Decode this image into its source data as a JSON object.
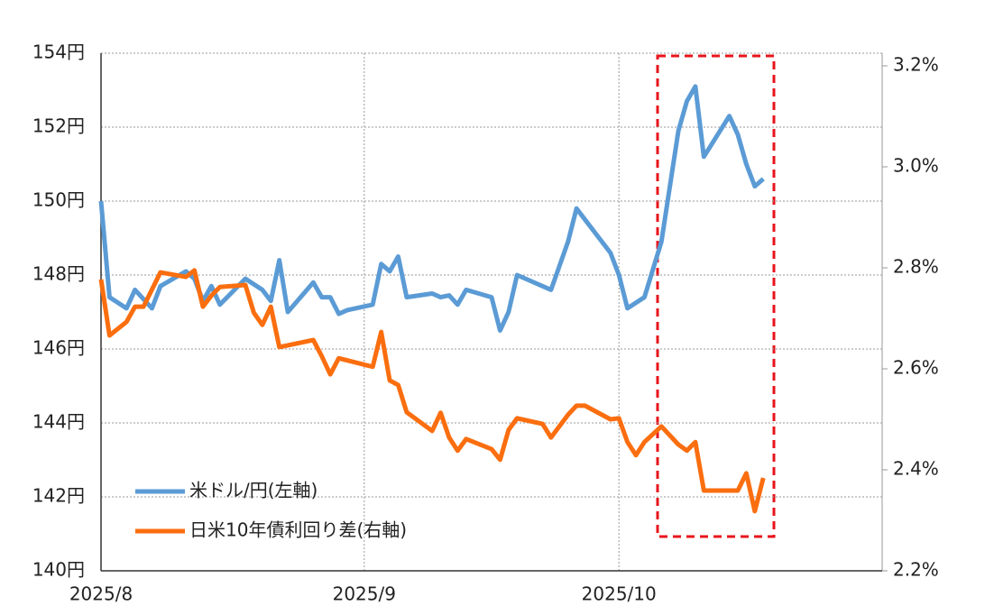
{
  "chart_data": {
    "type": "line",
    "xlim": [
      0,
      92
    ],
    "xticks": [
      {
        "value": 0,
        "label": "2025/8"
      },
      {
        "value": 31,
        "label": "2025/9"
      },
      {
        "value": 61,
        "label": "2025/10"
      }
    ],
    "ylim": [
      140,
      154
    ],
    "yticks": [
      {
        "value": 140,
        "label": "140円"
      },
      {
        "value": 142,
        "label": "142円"
      },
      {
        "value": 144,
        "label": "144円"
      },
      {
        "value": 146,
        "label": "146円"
      },
      {
        "value": 148,
        "label": "148円"
      },
      {
        "value": 150,
        "label": "150円"
      },
      {
        "value": 152,
        "label": "152円"
      },
      {
        "value": 154,
        "label": "154円"
      }
    ],
    "y2lim": [
      2.2,
      3.225
    ],
    "y2ticks": [
      {
        "value": 2.2,
        "label": "2.2%"
      },
      {
        "value": 2.4,
        "label": "2.4%"
      },
      {
        "value": 2.6,
        "label": "2.6%"
      },
      {
        "value": 2.8,
        "label": "2.8%"
      },
      {
        "value": 3.0,
        "label": "3.0%"
      },
      {
        "value": 3.2,
        "label": "3.2%"
      }
    ],
    "grid": true,
    "legend": "lower left",
    "series": [
      {
        "name": "米ドル/円(左軸)",
        "color": "#5b9bd5",
        "x": [
          0,
          1,
          3,
          4,
          6,
          7,
          10,
          11,
          12,
          13,
          14,
          17,
          19,
          20,
          21,
          22,
          25,
          26,
          27,
          28,
          29,
          32,
          33,
          34,
          35,
          36,
          39,
          40,
          41,
          42,
          43,
          46,
          47,
          48,
          49,
          53,
          55,
          56,
          60,
          61,
          62,
          64,
          66,
          67,
          68,
          69,
          70,
          71,
          74,
          75,
          76,
          77,
          78
        ],
        "values": [
          150.0,
          147.4,
          147.1,
          147.6,
          147.1,
          147.7,
          148.1,
          147.9,
          147.3,
          147.7,
          147.2,
          147.9,
          147.6,
          147.3,
          148.4,
          147.0,
          147.8,
          147.4,
          147.4,
          146.95,
          147.05,
          147.2,
          148.3,
          148.1,
          148.5,
          147.4,
          147.5,
          147.4,
          147.45,
          147.2,
          147.6,
          147.4,
          146.5,
          147.0,
          148.0,
          147.6,
          148.9,
          149.8,
          148.6,
          148.0,
          147.1,
          147.4,
          148.9,
          150.4,
          151.9,
          152.7,
          153.1,
          151.2,
          152.3,
          151.8,
          151.0,
          150.4,
          150.6
        ]
      },
      {
        "name": "日米10年債利回り差(右軸)",
        "color": "#fa6e0f",
        "axis": "y2",
        "x": [
          0,
          1,
          3,
          4,
          5,
          7,
          10,
          11,
          12,
          13,
          14,
          17,
          18,
          19,
          20,
          21,
          25,
          26,
          27,
          28,
          32,
          33,
          34,
          35,
          36,
          39,
          40,
          41,
          42,
          43,
          46,
          47,
          48,
          49,
          52,
          53,
          55,
          56,
          57,
          60,
          61,
          62,
          63,
          64,
          66,
          68,
          69,
          70,
          71,
          75,
          76,
          77,
          78
        ],
        "values": [
          2.777,
          2.666,
          2.693,
          2.723,
          2.723,
          2.791,
          2.782,
          2.795,
          2.723,
          2.745,
          2.762,
          2.766,
          2.711,
          2.687,
          2.723,
          2.643,
          2.657,
          2.625,
          2.589,
          2.621,
          2.604,
          2.673,
          2.577,
          2.568,
          2.514,
          2.477,
          2.513,
          2.464,
          2.438,
          2.461,
          2.441,
          2.42,
          2.479,
          2.502,
          2.491,
          2.464,
          2.509,
          2.527,
          2.527,
          2.5,
          2.502,
          2.455,
          2.429,
          2.455,
          2.486,
          2.45,
          2.438,
          2.455,
          2.359,
          2.359,
          2.393,
          2.318,
          2.384
        ]
      }
    ]
  }
}
